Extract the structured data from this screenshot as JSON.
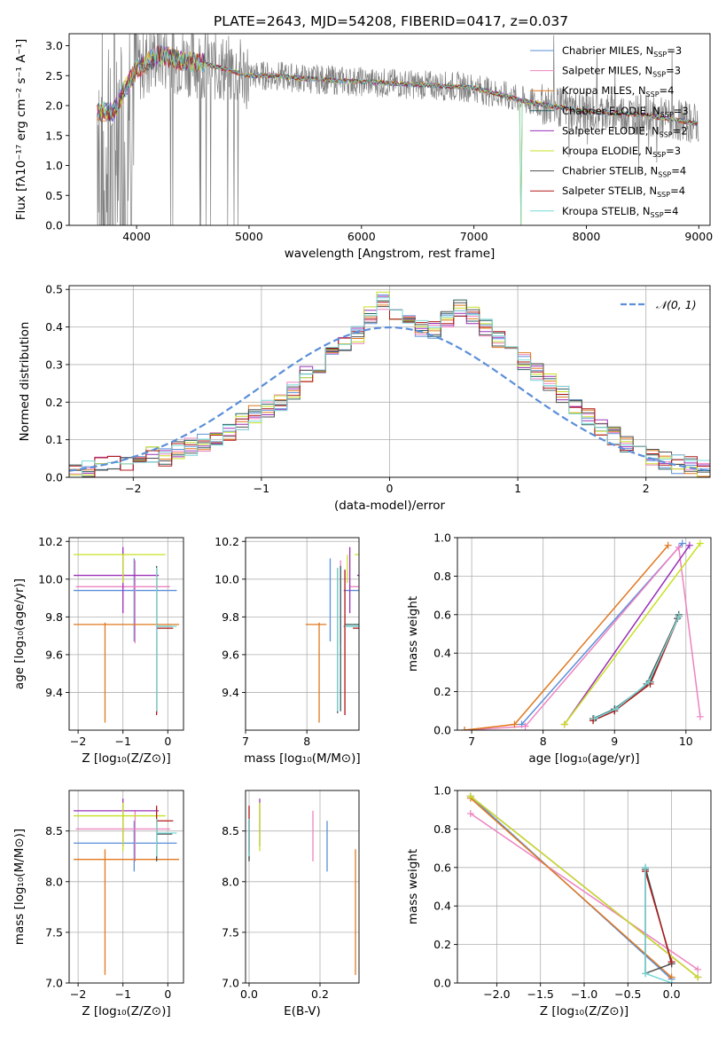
{
  "figure": {
    "title": "PLATE=2643, MJD=54208, FIBERID=0417, z=0.037"
  },
  "colors": {
    "Chabrier MILES": "#5b8fd9",
    "Salpeter MILES": "#ee82c0",
    "Kroupa MILES": "#e0781e",
    "Chabrier ELODIE": "#2f6060",
    "Salpeter ELODIE": "#9b30b8",
    "Kroupa ELODIE": "#c8e024",
    "Chabrier STELIB": "#505050",
    "Salpeter STELIB": "#b01818",
    "Kroupa STELIB": "#78d8d8",
    "data_gray": "#808080",
    "normal_curve": "#5b8fd9",
    "grid": "#b0b0b0"
  },
  "spectrum": {
    "xlabel": "wavelength [Angstrom, rest frame]",
    "ylabel": "Flux [fλ10⁻¹⁷ erg cm⁻² s⁻¹ A⁻¹]",
    "xlim": [
      3400,
      9100
    ],
    "ylim": [
      0,
      3.2
    ],
    "xticks": [
      4000,
      5000,
      6000,
      7000,
      8000,
      9000
    ],
    "yticks": [
      0.0,
      0.5,
      1.0,
      1.5,
      2.0,
      2.5,
      3.0
    ],
    "legend": [
      {
        "model": "Chabrier MILES",
        "nssp": "3"
      },
      {
        "model": "Salpeter MILES",
        "nssp": "3"
      },
      {
        "model": "Kroupa MILES",
        "nssp": "4"
      },
      {
        "model": "Chabrier ELODIE",
        "nssp": "3"
      },
      {
        "model": "Salpeter ELODIE",
        "nssp": "2"
      },
      {
        "model": "Kroupa ELODIE",
        "nssp": "3"
      },
      {
        "model": "Chabrier STELIB",
        "nssp": "4"
      },
      {
        "model": "Salpeter STELIB",
        "nssp": "4"
      },
      {
        "model": "Kroupa STELIB",
        "nssp": "4"
      }
    ],
    "continuum_points": [
      [
        3650,
        1.9
      ],
      [
        3800,
        1.9
      ],
      [
        3900,
        2.3
      ],
      [
        4000,
        2.6
      ],
      [
        4200,
        2.85
      ],
      [
        4400,
        2.75
      ],
      [
        4600,
        2.7
      ],
      [
        4800,
        2.6
      ],
      [
        5000,
        2.5
      ],
      [
        5200,
        2.5
      ],
      [
        5500,
        2.45
      ],
      [
        6000,
        2.4
      ],
      [
        6500,
        2.35
      ],
      [
        7000,
        2.3
      ],
      [
        7500,
        2.05
      ],
      [
        8000,
        1.9
      ],
      [
        8500,
        1.85
      ],
      [
        9000,
        1.7
      ]
    ],
    "model_spike_wavelengths": [
      5780,
      6800,
      7420
    ]
  },
  "residuals": {
    "xlabel": "(data-model)/error",
    "ylabel": "Normed distribution",
    "xlim": [
      -2.5,
      2.5
    ],
    "ylim": [
      0,
      0.51
    ],
    "xticks": [
      -2,
      -1,
      0,
      1,
      2
    ],
    "yticks": [
      0.0,
      0.1,
      0.2,
      0.3,
      0.4,
      0.5
    ],
    "legend_label": "𝒩(0, 1)",
    "bin_width": 0.1,
    "bin_start": -2.5,
    "histogram": [
      0.015,
      0.02,
      0.03,
      0.035,
      0.03,
      0.045,
      0.06,
      0.055,
      0.07,
      0.08,
      0.09,
      0.1,
      0.12,
      0.15,
      0.17,
      0.185,
      0.2,
      0.23,
      0.27,
      0.3,
      0.33,
      0.36,
      0.38,
      0.43,
      0.47,
      0.44,
      0.42,
      0.4,
      0.39,
      0.42,
      0.45,
      0.43,
      0.4,
      0.37,
      0.34,
      0.31,
      0.28,
      0.25,
      0.22,
      0.19,
      0.16,
      0.13,
      0.11,
      0.09,
      0.07,
      0.05,
      0.045,
      0.035,
      0.03,
      0.02
    ]
  },
  "props": {
    "age_label": "age  [log₁₀(age/yr)]",
    "Z_label": "Z [log₁₀(Z/Z⊙)]",
    "mass_label": "mass [log₁₀(M/M⊙)]",
    "ebv_label": "E(B-V)",
    "mass_weight_label": "mass weight",
    "fits": [
      {
        "name": "Chabrier MILES",
        "Z": -0.75,
        "Zlo": -2.1,
        "Zhi": 0.2,
        "age": 9.94,
        "alo": 9.67,
        "ahi": 10.11,
        "mass": 8.38,
        "mlo": 8.1,
        "mhi": 8.6,
        "mstar": 8.38,
        "ebv": 0.22
      },
      {
        "name": "Salpeter MILES",
        "Z": -0.73,
        "Zlo": -2.05,
        "Zhi": 0.05,
        "age": 9.96,
        "alo": 9.66,
        "ahi": 10.1,
        "mass": 8.52,
        "mlo": 8.2,
        "mhi": 8.7,
        "mstar": 8.55,
        "ebv": 0.18
      },
      {
        "name": "Kroupa MILES",
        "Z": -1.4,
        "Zlo": -2.1,
        "Zhi": 0.25,
        "age": 9.76,
        "alo": 9.24,
        "ahi": 9.77,
        "mass": 8.22,
        "mlo": 7.08,
        "mhi": 8.32,
        "mstar": 8.2,
        "ebv": 0.3
      },
      {
        "name": "Chabrier ELODIE",
        "Z": -0.25,
        "Zlo": -0.26,
        "Zhi": -0.24,
        "age": 9.76,
        "alo": 9.3,
        "ahi": 10.07,
        "mass": 8.58,
        "mlo": 8.22,
        "mhi": 8.62,
        "mstar": 8.55,
        "ebv": 0.0
      },
      {
        "name": "Salpeter ELODIE",
        "Z": -1.0,
        "Zlo": -2.1,
        "Zhi": -0.2,
        "age": 10.02,
        "alo": 9.82,
        "ahi": 10.17,
        "mass": 8.7,
        "mlo": 8.35,
        "mhi": 8.82,
        "mstar": 8.7,
        "ebv": 0.03
      },
      {
        "name": "Kroupa ELODIE",
        "Z": -1.0,
        "Zlo": -2.1,
        "Zhi": -0.05,
        "age": 10.13,
        "alo": 9.98,
        "ahi": 10.13,
        "mass": 8.65,
        "mlo": 8.3,
        "mhi": 8.78,
        "mstar": 8.66,
        "ebv": 0.03
      },
      {
        "name": "Chabrier STELIB",
        "Z": -0.25,
        "Zlo": -0.26,
        "Zhi": 0.1,
        "age": 9.75,
        "alo": 9.29,
        "ahi": 10.06,
        "mass": 8.47,
        "mlo": 8.2,
        "mhi": 8.6,
        "mstar": 8.5,
        "ebv": 0.0
      },
      {
        "name": "Salpeter STELIB",
        "Z": -0.25,
        "Zlo": -0.26,
        "Zhi": 0.12,
        "age": 9.74,
        "alo": 9.28,
        "ahi": 10.05,
        "mass": 8.6,
        "mlo": 8.3,
        "mhi": 8.75,
        "mstar": 8.62,
        "ebv": 0.0
      },
      {
        "name": "Kroupa STELIB",
        "Z": -0.25,
        "Zlo": -0.26,
        "Zhi": 0.2,
        "age": 9.75,
        "alo": 9.3,
        "ahi": 10.06,
        "mass": 8.48,
        "mlo": 8.25,
        "mhi": 8.62,
        "mstar": 8.5,
        "ebv": 0.0
      }
    ],
    "age_Z_xlim": [
      -2.2,
      0.35
    ],
    "age_Z_xticks": [
      -2,
      -1,
      0
    ],
    "age_ylim": [
      9.2,
      10.22
    ],
    "age_yticks": [
      9.4,
      9.6,
      9.8,
      10.0,
      10.2
    ],
    "age_mass_xlim": [
      7.0,
      8.85
    ],
    "age_mass_xticks": [
      7,
      8
    ],
    "mass_ylim": [
      7.0,
      8.9
    ],
    "mass_yticks": [
      7.0,
      7.5,
      8.0,
      8.5
    ],
    "ebv_xlim": [
      -0.01,
      0.31
    ],
    "ebv_xticks": [
      0.0,
      0.2
    ],
    "mw_age": {
      "xlim": [
        6.8,
        10.35
      ],
      "xticks": [
        7,
        8,
        9,
        10
      ],
      "ylim": [
        0,
        1.0
      ],
      "yticks": [
        0.0,
        0.2,
        0.4,
        0.6,
        0.8,
        1.0
      ],
      "series": [
        {
          "name": "Chabrier MILES",
          "pts": [
            [
              7.7,
              0.03
            ],
            [
              9.95,
              0.97
            ]
          ]
        },
        {
          "name": "Salpeter MILES",
          "pts": [
            [
              6.9,
              0.0
            ],
            [
              7.75,
              0.02
            ],
            [
              9.9,
              0.95
            ],
            [
              10.2,
              0.07
            ]
          ]
        },
        {
          "name": "Kroupa MILES",
          "pts": [
            [
              6.9,
              0.0
            ],
            [
              7.6,
              0.03
            ],
            [
              9.75,
              0.96
            ]
          ]
        },
        {
          "name": "Chabrier ELODIE",
          "pts": [
            [
              8.7,
              0.06
            ],
            [
              9.0,
              0.11
            ],
            [
              9.5,
              0.25
            ],
            [
              9.9,
              0.6
            ]
          ]
        },
        {
          "name": "Salpeter ELODIE",
          "pts": [
            [
              8.3,
              0.03
            ],
            [
              10.05,
              0.96
            ]
          ]
        },
        {
          "name": "Kroupa ELODIE",
          "pts": [
            [
              8.3,
              0.03
            ],
            [
              10.2,
              0.97
            ]
          ]
        },
        {
          "name": "Chabrier STELIB",
          "pts": [
            [
              8.7,
              0.05
            ],
            [
              9.0,
              0.1
            ],
            [
              9.45,
              0.24
            ],
            [
              9.88,
              0.58
            ]
          ]
        },
        {
          "name": "Salpeter STELIB",
          "pts": [
            [
              8.7,
              0.05
            ],
            [
              9.0,
              0.1
            ],
            [
              9.5,
              0.24
            ],
            [
              9.9,
              0.59
            ]
          ]
        },
        {
          "name": "Kroupa STELIB",
          "pts": [
            [
              8.72,
              0.06
            ],
            [
              9.02,
              0.11
            ],
            [
              9.48,
              0.25
            ],
            [
              9.9,
              0.59
            ]
          ]
        }
      ]
    },
    "mw_Z": {
      "xlim": [
        -2.45,
        0.45
      ],
      "xticks": [
        -2.0,
        -1.5,
        -1.0,
        -0.5,
        0.0
      ],
      "ylim": [
        0,
        1.0
      ],
      "yticks": [
        0.0,
        0.2,
        0.4,
        0.6,
        0.8,
        1.0
      ],
      "series": [
        {
          "name": "Chabrier MILES",
          "pts": [
            [
              -2.3,
              0.97
            ],
            [
              0.0,
              0.02
            ]
          ]
        },
        {
          "name": "Salpeter MILES",
          "pts": [
            [
              -2.3,
              0.88
            ],
            [
              0.3,
              0.07
            ]
          ]
        },
        {
          "name": "Kroupa MILES",
          "pts": [
            [
              -2.3,
              0.96
            ],
            [
              0.0,
              0.03
            ]
          ]
        },
        {
          "name": "Chabrier ELODIE",
          "pts": [
            [
              -0.3,
              0.6
            ],
            [
              0.0,
              0.1
            ]
          ]
        },
        {
          "name": "Salpeter ELODIE",
          "pts": [
            [
              -2.3,
              0.97
            ],
            [
              0.3,
              0.03
            ]
          ]
        },
        {
          "name": "Kroupa ELODIE",
          "pts": [
            [
              -2.3,
              0.97
            ],
            [
              0.3,
              0.03
            ]
          ]
        },
        {
          "name": "Chabrier STELIB",
          "pts": [
            [
              -0.3,
              0.59
            ],
            [
              -0.3,
              0.05
            ],
            [
              0.0,
              0.1
            ]
          ]
        },
        {
          "name": "Salpeter STELIB",
          "pts": [
            [
              -0.3,
              0.58
            ],
            [
              0.0,
              0.11
            ]
          ]
        },
        {
          "name": "Kroupa STELIB",
          "pts": [
            [
              -0.3,
              0.6
            ],
            [
              -0.3,
              0.05
            ],
            [
              0.0,
              0.0
            ]
          ]
        }
      ]
    }
  },
  "chart_data": [
    {
      "type": "line",
      "title": "PLATE=2643, MJD=54208, FIBERID=0417, z=0.037",
      "xlabel": "wavelength [Angstrom, rest frame]",
      "ylabel": "Flux [fλ10⁻¹⁷ erg cm⁻² s⁻¹ A⁻¹]",
      "xlim": [
        3400,
        9100
      ],
      "ylim": [
        0,
        3.2
      ],
      "x": [
        3650,
        3800,
        3900,
        4000,
        4200,
        4400,
        4600,
        4800,
        5000,
        5200,
        5500,
        6000,
        6500,
        7000,
        7500,
        8000,
        8500,
        9000
      ],
      "series": [
        {
          "name": "Chabrier MILES, N_SSP=3",
          "values": [
            1.9,
            1.9,
            2.3,
            2.6,
            2.85,
            2.75,
            2.7,
            2.6,
            2.5,
            2.5,
            2.45,
            2.4,
            2.35,
            2.3,
            2.05,
            1.9,
            1.85,
            1.7
          ]
        }
      ],
      "legend": "top-right"
    },
    {
      "type": "bar",
      "xlabel": "(data-model)/error",
      "ylabel": "Normed distribution",
      "xlim": [
        -2.5,
        2.5
      ],
      "ylim": [
        0,
        0.51
      ],
      "bin_width": 0.1
    },
    {
      "type": "scatter",
      "xlabel": "Z [log₁₀(Z/Z⊙)]",
      "ylabel": "age  [log₁₀(age/yr)]",
      "ylim": [
        9.2,
        10.22
      ]
    },
    {
      "type": "scatter",
      "xlabel": "mass [log₁₀(M/M⊙)]",
      "ylim": [
        9.2,
        10.22
      ]
    },
    {
      "type": "line",
      "xlabel": "age  [log₁₀(age/yr)]",
      "ylabel": "mass weight",
      "ylim": [
        0,
        1
      ]
    },
    {
      "type": "scatter",
      "xlabel": "Z [log₁₀(Z/Z⊙)]",
      "ylabel": "mass [log₁₀(M/M⊙)]",
      "ylim": [
        7.0,
        8.9
      ]
    },
    {
      "type": "scatter",
      "xlabel": "E(B-V)",
      "ylim": [
        7.0,
        8.9
      ]
    },
    {
      "type": "line",
      "xlabel": "Z [log₁₀(Z/Z⊙)]",
      "ylabel": "mass weight",
      "ylim": [
        0,
        1
      ]
    }
  ]
}
